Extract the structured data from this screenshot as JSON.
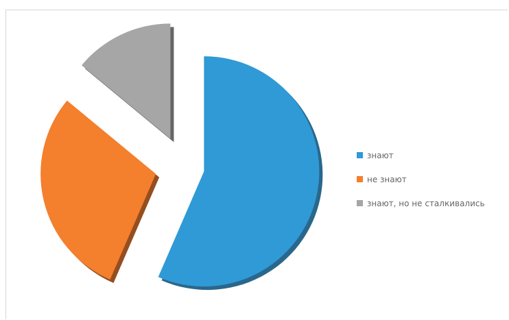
{
  "chart_data": {
    "type": "pie",
    "title": "",
    "categories": [
      "знают",
      "не знают",
      "знают, но не сталкивались"
    ],
    "values": [
      56.5,
      29.5,
      14.0
    ],
    "colors": [
      "#2f9ad6",
      "#f47f2d",
      "#a6a6a6"
    ],
    "shadow_colors": [
      "#1f5f86",
      "#8f4514",
      "#5e5e5e"
    ],
    "exploded": true,
    "legend_position": "right",
    "data_labels": false
  }
}
